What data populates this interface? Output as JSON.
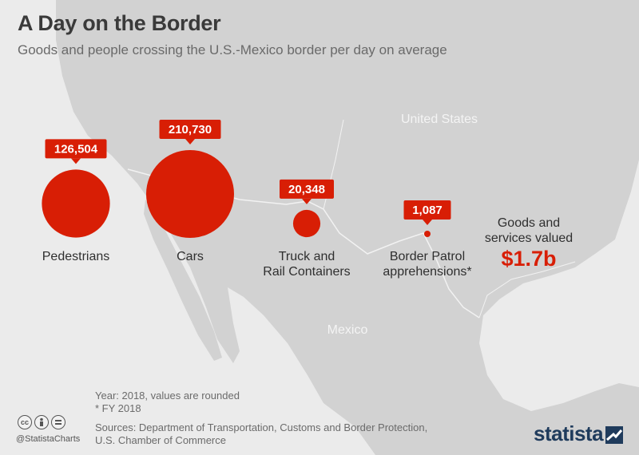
{
  "title": "A Day on the Border",
  "subtitle": "Goods and people crossing the U.S.-Mexico border per day on average",
  "map": {
    "us_label": "United States",
    "mx_label": "Mexico"
  },
  "chart_data": {
    "type": "bubble",
    "title": "A Day on the Border",
    "subtitle": "Goods and people crossing the U.S.-Mexico border per day on average",
    "unit": "per day on average",
    "categories": [
      "Pedestrians",
      "Cars",
      "Truck and Rail Containers",
      "Border Patrol apprehensions*"
    ],
    "category_lines": [
      [
        "Pedestrians"
      ],
      [
        "Cars"
      ],
      [
        "Truck and",
        "Rail Containers"
      ],
      [
        "Border Patrol",
        "apprehensions*"
      ]
    ],
    "values": [
      126504,
      210730,
      20348,
      1087
    ],
    "value_labels": [
      "126,504",
      "210,730",
      "20,348",
      "1,087"
    ],
    "annotations": [
      {
        "label": "Goods and services valued",
        "value": "$1.7b"
      }
    ],
    "bubble_color": "#d81e05"
  },
  "goods": {
    "label": "Goods and services valued",
    "value": "$1.7b"
  },
  "notes": {
    "line1": "Year: 2018, values are rounded",
    "line2": "* FY 2018",
    "sources1": "Sources: Department of Transportation, Customs and Border Protection,",
    "sources2": "U.S. Chamber of Commerce"
  },
  "footer": {
    "handle": "@StatistaCharts",
    "brand": "statista",
    "license_icons": [
      "cc-icon",
      "by-person-icon",
      "nd-equals-icon"
    ]
  },
  "colors": {
    "background": "#ebebeb",
    "land": "#d2d2d2",
    "accent": "#d81e05",
    "brand": "#1f3b5c"
  }
}
